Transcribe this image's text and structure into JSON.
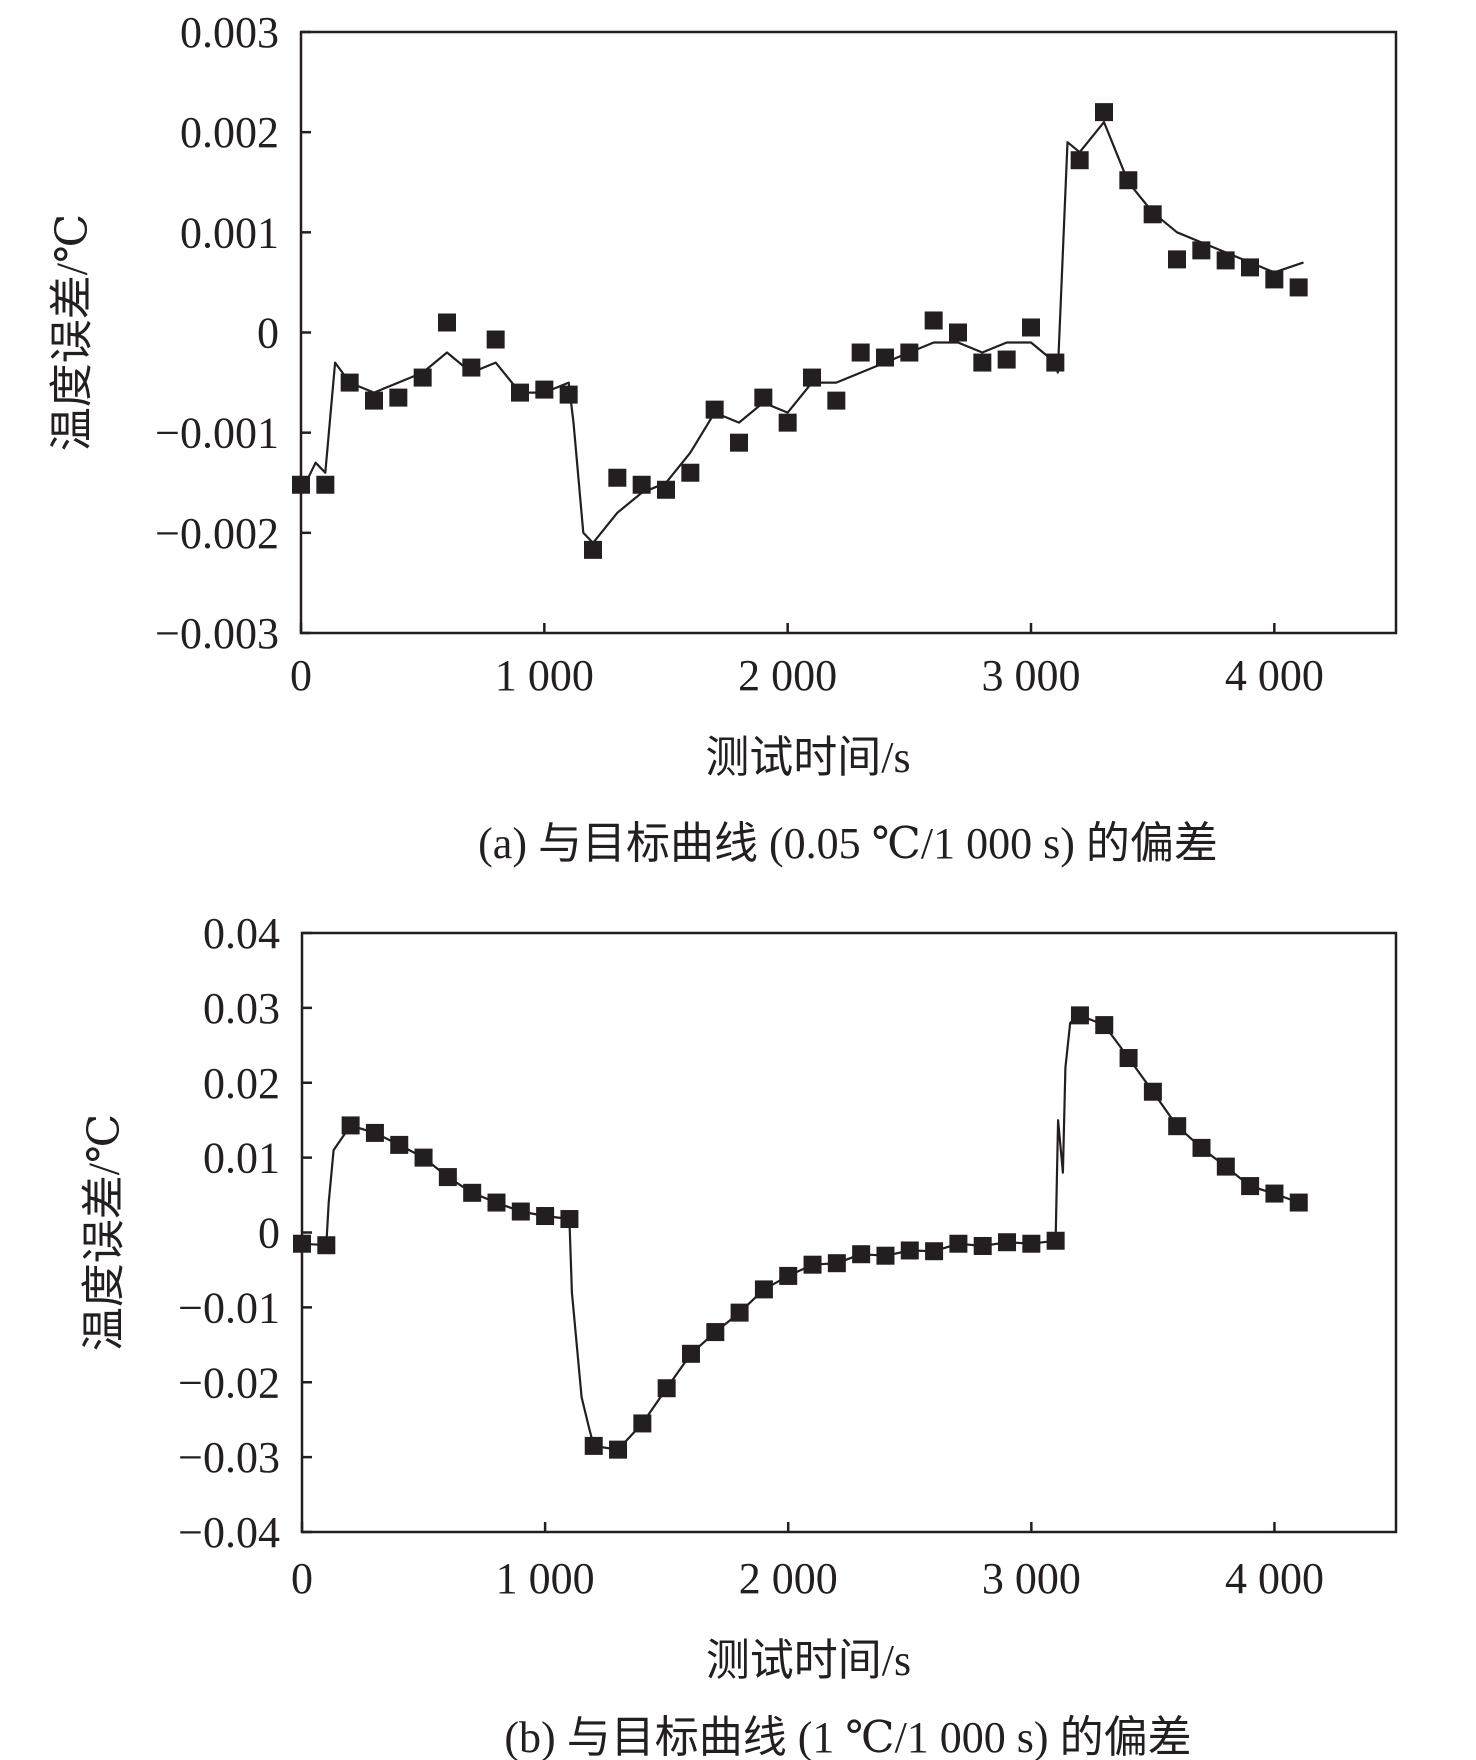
{
  "chart_data": [
    {
      "type": "line",
      "caption": "(a) 与目标曲线 (0.05 ℃/1 000 s) 的偏差",
      "xlabel": "测试时间/s",
      "ylabel": "温度误差/℃",
      "xlim": [
        0,
        4500
      ],
      "ylim": [
        -0.003,
        0.003
      ],
      "xticks": [
        0,
        1000,
        2000,
        3000,
        4000
      ],
      "xtick_labels": [
        "0",
        "1 000",
        "2 000",
        "3 000",
        "4 000"
      ],
      "yticks": [
        0.003,
        0.002,
        0.001,
        0,
        -0.001,
        -0.002,
        -0.003
      ],
      "ytick_labels": [
        "0.003",
        "0.002",
        "0.001",
        "0",
        "−0.001",
        "−0.002",
        "−0.003"
      ],
      "grid": false,
      "series": [
        {
          "name": "deviation",
          "marker": "square",
          "x": [
            0,
            100,
            200,
            300,
            400,
            500,
            600,
            700,
            800,
            900,
            1000,
            1100,
            1200,
            1300,
            1400,
            1500,
            1600,
            1700,
            1800,
            1900,
            2000,
            2100,
            2200,
            2300,
            2400,
            2500,
            2600,
            2700,
            2800,
            2900,
            3000,
            3100,
            3200,
            3300,
            3400,
            3500,
            3600,
            3700,
            3800,
            3900,
            4000,
            4100
          ],
          "values": [
            -0.00152,
            -0.00152,
            -0.0005,
            -0.00068,
            -0.00065,
            -0.00045,
            0.0001,
            -0.00035,
            -7e-05,
            -0.0006,
            -0.00057,
            -0.00062,
            -0.00217,
            -0.00145,
            -0.00152,
            -0.00157,
            -0.0014,
            -0.00077,
            -0.0011,
            -0.00065,
            -0.0009,
            -0.00045,
            -0.00068,
            -0.0002,
            -0.00025,
            -0.0002,
            0.00012,
            0.0,
            -0.0003,
            -0.00027,
            5e-05,
            -0.0003,
            0.00172,
            0.0022,
            0.00152,
            0.00118,
            0.00073,
            0.00082,
            0.00072,
            0.00065,
            0.00053,
            0.00045
          ]
        }
      ],
      "line": {
        "x": [
          0,
          60,
          100,
          140,
          200,
          300,
          400,
          500,
          600,
          700,
          800,
          900,
          1000,
          1100,
          1120,
          1160,
          1200,
          1300,
          1400,
          1500,
          1600,
          1700,
          1800,
          1900,
          2000,
          2100,
          2200,
          2300,
          2400,
          2500,
          2600,
          2700,
          2800,
          2900,
          3000,
          3100,
          3110,
          3150,
          3200,
          3300,
          3400,
          3500,
          3600,
          3700,
          3800,
          3900,
          4000,
          4120
        ],
        "values": [
          -0.0016,
          -0.0013,
          -0.0014,
          -0.0003,
          -0.0005,
          -0.0006,
          -0.0005,
          -0.0004,
          -0.0002,
          -0.0004,
          -0.0003,
          -0.0006,
          -0.0006,
          -0.0005,
          -0.0009,
          -0.002,
          -0.0021,
          -0.0018,
          -0.0016,
          -0.0015,
          -0.0012,
          -0.0008,
          -0.0009,
          -0.0007,
          -0.0008,
          -0.0005,
          -0.0005,
          -0.0004,
          -0.0003,
          -0.0002,
          -0.0001,
          -0.0001,
          -0.0002,
          -0.0001,
          -0.0001,
          -0.0003,
          -0.0004,
          0.0019,
          0.0018,
          0.0021,
          0.0015,
          0.0012,
          0.001,
          0.0009,
          0.0008,
          0.0007,
          0.0006,
          0.0007
        ]
      }
    },
    {
      "type": "line",
      "caption": "(b) 与目标曲线 (1 ℃/1 000 s) 的偏差",
      "xlabel": "测试时间/s",
      "ylabel": "温度误差/℃",
      "xlim": [
        0,
        4500
      ],
      "ylim": [
        -0.04,
        0.04
      ],
      "xticks": [
        0,
        1000,
        2000,
        3000,
        4000
      ],
      "xtick_labels": [
        "0",
        "1 000",
        "2 000",
        "3 000",
        "4 000"
      ],
      "yticks": [
        0.04,
        0.03,
        0.02,
        0.01,
        0,
        -0.01,
        -0.02,
        -0.03,
        -0.04
      ],
      "ytick_labels": [
        "0.04",
        "0.03",
        "0.02",
        "0.01",
        "0",
        "−0.01",
        "−0.02",
        "−0.03",
        "−0.04"
      ],
      "grid": false,
      "series": [
        {
          "name": "deviation",
          "marker": "square",
          "x": [
            0,
            100,
            200,
            300,
            400,
            500,
            600,
            700,
            800,
            900,
            1000,
            1100,
            1200,
            1300,
            1400,
            1500,
            1600,
            1700,
            1800,
            1900,
            2000,
            2100,
            2200,
            2300,
            2400,
            2500,
            2600,
            2700,
            2800,
            2900,
            3000,
            3100,
            3200,
            3300,
            3400,
            3500,
            3600,
            3700,
            3800,
            3900,
            4000,
            4100
          ],
          "values": [
            -0.0015,
            -0.0017,
            0.0143,
            0.0133,
            0.0117,
            0.01,
            0.0074,
            0.0053,
            0.004,
            0.0028,
            0.0022,
            0.0018,
            -0.0285,
            -0.029,
            -0.0255,
            -0.0208,
            -0.0162,
            -0.0133,
            -0.0107,
            -0.0076,
            -0.0058,
            -0.0043,
            -0.0041,
            -0.0029,
            -0.0031,
            -0.0024,
            -0.0025,
            -0.0015,
            -0.0018,
            -0.0013,
            -0.0015,
            -0.0011,
            0.029,
            0.0277,
            0.0233,
            0.0188,
            0.0142,
            0.0113,
            0.0088,
            0.0062,
            0.0052,
            0.004
          ]
        }
      ],
      "line": {
        "x": [
          0,
          100,
          110,
          130,
          200,
          300,
          400,
          500,
          600,
          700,
          800,
          900,
          1000,
          1100,
          1110,
          1150,
          1180,
          1200,
          1300,
          1400,
          1500,
          1600,
          1700,
          1800,
          1900,
          2000,
          2100,
          2200,
          2300,
          2400,
          2500,
          2600,
          2700,
          2800,
          2900,
          3000,
          3100,
          3110,
          3130,
          3140,
          3160,
          3200,
          3300,
          3400,
          3500,
          3600,
          3700,
          3800,
          3900,
          4000,
          4100
        ],
        "values": [
          -0.0015,
          -0.0017,
          0.004,
          0.011,
          0.0143,
          0.0133,
          0.0117,
          0.01,
          0.0074,
          0.0053,
          0.004,
          0.0028,
          0.0022,
          0.0018,
          -0.008,
          -0.022,
          -0.026,
          -0.0285,
          -0.029,
          -0.0255,
          -0.0208,
          -0.0162,
          -0.0133,
          -0.0107,
          -0.0076,
          -0.0058,
          -0.0043,
          -0.0041,
          -0.0029,
          -0.0031,
          -0.0024,
          -0.0025,
          -0.0015,
          -0.0018,
          -0.0013,
          -0.0015,
          -0.0011,
          0.015,
          0.008,
          0.022,
          0.028,
          0.029,
          0.0277,
          0.0233,
          0.0188,
          0.0142,
          0.0113,
          0.0088,
          0.0062,
          0.0052,
          0.004
        ]
      }
    }
  ]
}
